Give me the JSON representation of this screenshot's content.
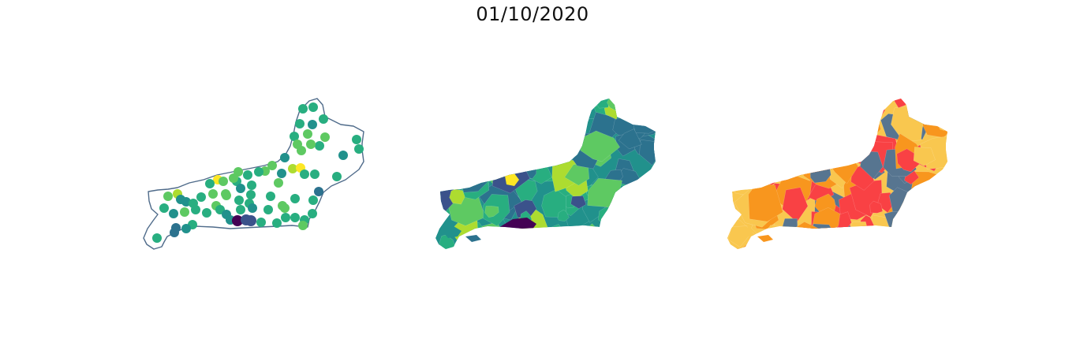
{
  "title": "01/10/2020",
  "colors": {
    "outline": "#4f6b8a",
    "viridis": [
      "#440154",
      "#3b528b",
      "#2c728e",
      "#21918c",
      "#28ae80",
      "#5ec962",
      "#addc30",
      "#fde725"
    ],
    "categorical": [
      "#f9c74f",
      "#f8961e",
      "#f94144",
      "#577590"
    ]
  },
  "panels": [
    {
      "kind": "points-map",
      "outline_color": "#4f6b8a"
    },
    {
      "kind": "choropleth-viridis"
    },
    {
      "kind": "choropleth-categorical"
    }
  ]
}
